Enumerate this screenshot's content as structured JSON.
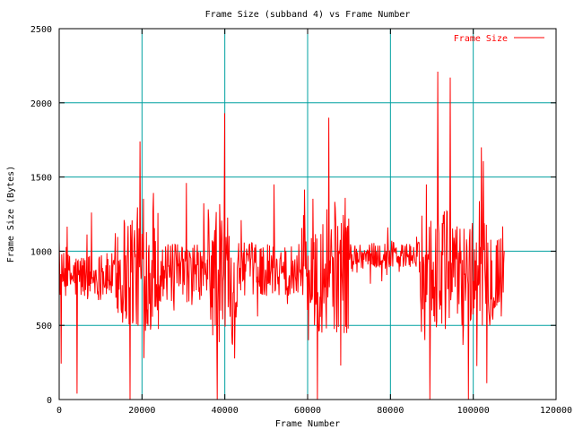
{
  "chart_data": {
    "type": "line",
    "title": "Frame Size (subband 4) vs Frame Number",
    "xlabel": "Frame Number",
    "ylabel": "Frame Size (Bytes)",
    "xlim": [
      0,
      120000
    ],
    "ylim": [
      0,
      2500
    ],
    "xticks": [
      0,
      20000,
      40000,
      60000,
      80000,
      100000,
      120000
    ],
    "yticks": [
      0,
      500,
      1000,
      1500,
      2000,
      2500
    ],
    "grid": true,
    "grid_color": "#00a0a0",
    "legend_position": "top-right",
    "series": [
      {
        "name": "Frame Size",
        "color": "#ff0000",
        "frame_count": 107500,
        "segments": [
          {
            "x_range": [
              0,
              14000
            ],
            "baseline": 830,
            "spread": 160,
            "min": 40,
            "max": 1260
          },
          {
            "x_range": [
              14000,
              24000
            ],
            "baseline": 880,
            "spread": 420,
            "min": 0,
            "max": 1740
          },
          {
            "x_range": [
              24000,
              36000
            ],
            "baseline": 850,
            "spread": 200,
            "min": 600,
            "max": 1460
          },
          {
            "x_range": [
              36000,
              43000
            ],
            "baseline": 850,
            "spread": 480,
            "min": 0,
            "max": 1930
          },
          {
            "x_range": [
              43000,
              59000
            ],
            "baseline": 880,
            "spread": 180,
            "min": 560,
            "max": 1450
          },
          {
            "x_range": [
              59000,
              70000
            ],
            "baseline": 900,
            "spread": 460,
            "min": 0,
            "max": 1900
          },
          {
            "x_range": [
              70000,
              87000
            ],
            "baseline": 970,
            "spread": 90,
            "min": 780,
            "max": 1160
          },
          {
            "x_range": [
              87000,
              95000
            ],
            "baseline": 850,
            "spread": 450,
            "min": 0,
            "max": 2210
          },
          {
            "x_range": [
              95000,
              107500
            ],
            "baseline": 850,
            "spread": 360,
            "min": 0,
            "max": 1700
          }
        ]
      }
    ]
  }
}
